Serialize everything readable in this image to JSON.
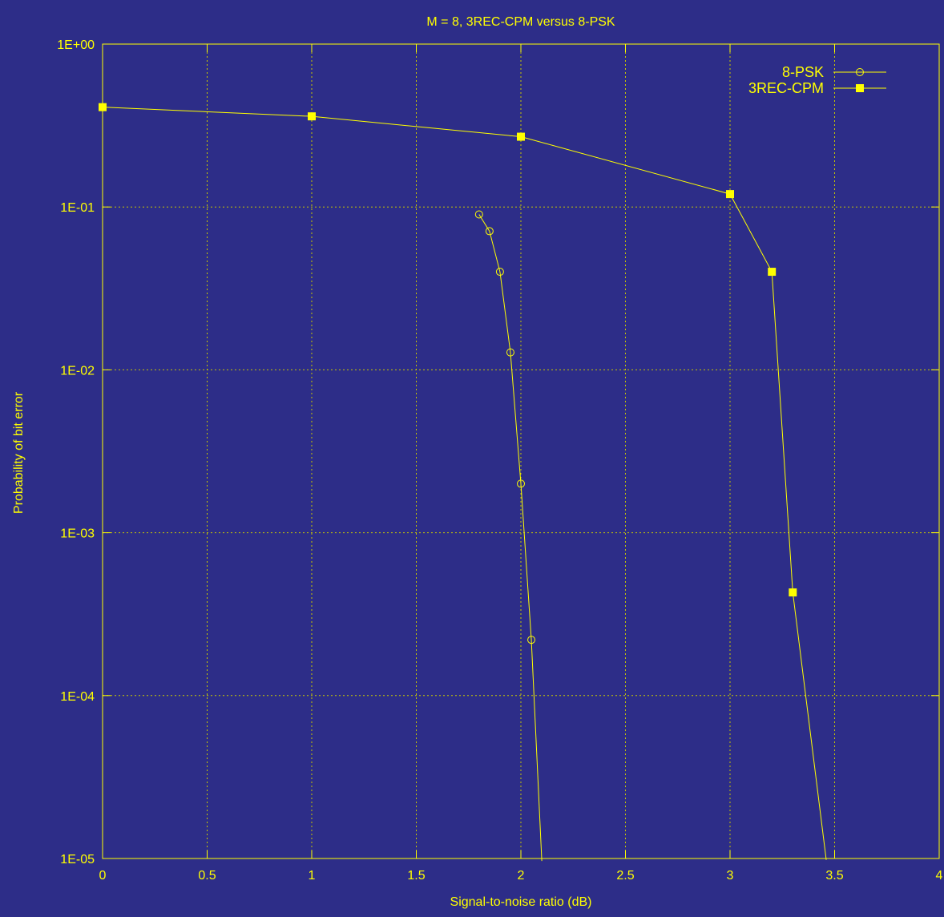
{
  "chart_data": {
    "type": "line",
    "title": "M = 8, 3REC-CPM versus 8-PSK",
    "xlabel": "Signal-to-noise ratio (dB)",
    "ylabel": "Probability of bit error",
    "xlim": [
      0,
      4
    ],
    "ylim": [
      1e-05,
      1
    ],
    "yscale": "log",
    "grid": true,
    "legend_position": "top-right",
    "x_ticks": [
      "0",
      "0.5",
      "1",
      "1.5",
      "2",
      "2.5",
      "3",
      "3.5",
      "4"
    ],
    "y_ticks": [
      "1E-05",
      "1E-04",
      "1E-03",
      "1E-02",
      "1E-01",
      "1E+00"
    ],
    "series": [
      {
        "name": "8-PSK",
        "marker": "open-circle",
        "x": [
          1.8,
          1.85,
          1.9,
          1.95,
          2.0,
          2.05,
          2.1
        ],
        "y": [
          0.09,
          0.071,
          0.04,
          0.0128,
          0.002,
          0.00022,
          9.65e-06
        ]
      },
      {
        "name": "3REC-CPM",
        "marker": "filled-square",
        "x": [
          0,
          1,
          2,
          3,
          3.2,
          3.3,
          3.46
        ],
        "y": [
          0.41,
          0.36,
          0.27,
          0.12,
          0.04,
          0.00043,
          9.8e-06
        ]
      }
    ],
    "colors": {
      "background": "#2d2d88",
      "foreground": "#ffff00",
      "grid": "#c8c800"
    }
  }
}
